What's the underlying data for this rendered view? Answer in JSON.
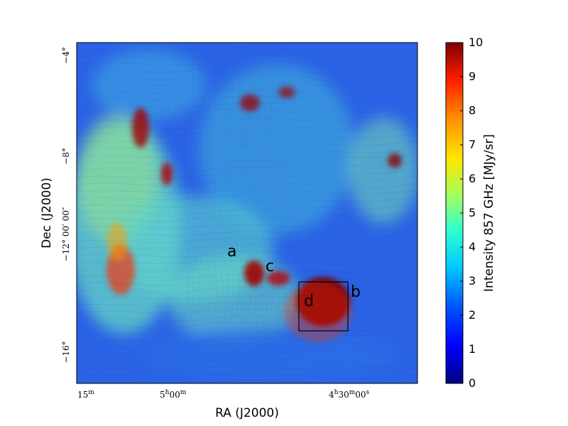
{
  "chart_data": {
    "type": "heatmap",
    "title": "",
    "xlabel": "RA (J2000)",
    "ylabel": "Dec (J2000)",
    "x_ticks": [
      {
        "label_main": "15",
        "label_sup": "m"
      },
      {
        "label_main": "5",
        "label_sup": "h",
        "label_main2": "00",
        "label_sup2": "m"
      },
      {
        "label_main": "4",
        "label_sup": "h",
        "label_main2": "30",
        "label_sup2": "m",
        "label_main3": "00",
        "label_sup3": "s"
      }
    ],
    "y_ticks": [
      {
        "value": -4,
        "label": "−4°"
      },
      {
        "value": -8,
        "label": "−8°"
      },
      {
        "value": -12,
        "label": "−12° 00′ 00″"
      },
      {
        "value": -16,
        "label": "−16°"
      }
    ],
    "ylim": [
      -16.7,
      -3.6
    ],
    "colorbar": {
      "label": "Intensity 857 GHz [MJy/sr]",
      "range": [
        0,
        10
      ],
      "ticks": [
        "0",
        "1",
        "2",
        "3",
        "4",
        "5",
        "6",
        "7",
        "8",
        "9",
        "10"
      ],
      "colormap": "jet"
    },
    "annotations": [
      {
        "text": "a"
      },
      {
        "text": "b"
      },
      {
        "text": "c"
      },
      {
        "text": "d"
      }
    ],
    "colors": {
      "background": "#ffffff",
      "low": "#00007f",
      "mid": "#00c8ff",
      "high": "#7f0000"
    }
  }
}
